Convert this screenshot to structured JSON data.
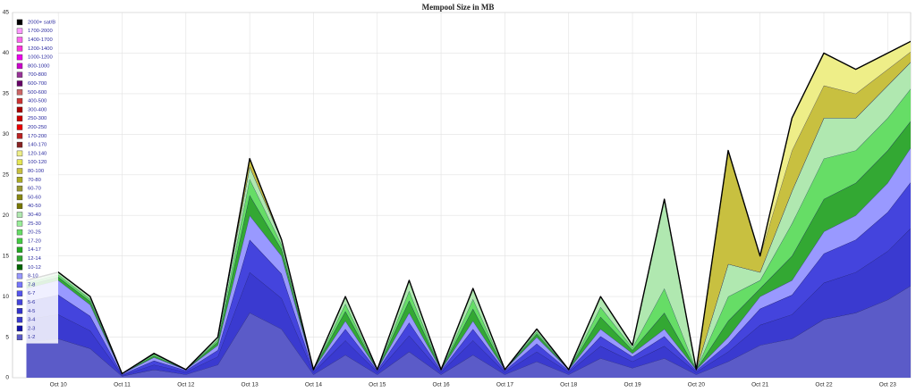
{
  "chart_data": {
    "type": "stacked-area",
    "title": "Mempool Size in MB",
    "categories": [
      null,
      "Oct 10",
      null,
      "Oct 11",
      null,
      "Oct 12",
      null,
      "Oct 13",
      null,
      "Oct 14",
      null,
      "Oct 15",
      null,
      "Oct 16",
      null,
      "Oct 17",
      null,
      "Oct 18",
      null,
      "Oct 19",
      null,
      "Oct 20",
      null,
      "Oct 21",
      null,
      "Oct 22",
      null,
      "Oct 23",
      null
    ],
    "ylim": [
      0,
      45
    ],
    "yticks": [
      0,
      5,
      10,
      15,
      20,
      25,
      30,
      35,
      40,
      45
    ],
    "grid": true,
    "legend": "top-left",
    "series": [
      {
        "name": "2000+ sat/B",
        "color": "#000000",
        "values": [
          0,
          0,
          0,
          0,
          0,
          0,
          0,
          0,
          0,
          0,
          0,
          0,
          0,
          0,
          0,
          0,
          0,
          0,
          0,
          0,
          0,
          0,
          0,
          0,
          0,
          0,
          0,
          0,
          0
        ]
      },
      {
        "name": "1700-2000",
        "color": "#ff99ff",
        "values": [
          0,
          0,
          0,
          0,
          0,
          0,
          0,
          0,
          0,
          0,
          0,
          0,
          0,
          0,
          0,
          0,
          0,
          0,
          0,
          0,
          0,
          0,
          0,
          0,
          0,
          0,
          0,
          0,
          0
        ]
      },
      {
        "name": "1400-1700",
        "color": "#ff66ee",
        "values": [
          0,
          0,
          0,
          0,
          0,
          0,
          0,
          0,
          0,
          0,
          0,
          0,
          0,
          0,
          0,
          0,
          0,
          0,
          0,
          0,
          0,
          0,
          0,
          0,
          0,
          0,
          0,
          0,
          0
        ]
      },
      {
        "name": "1200-1400",
        "color": "#ff33dd",
        "values": [
          0,
          0,
          0,
          0,
          0,
          0,
          0,
          0,
          0,
          0,
          0,
          0,
          0,
          0,
          0,
          0,
          0,
          0,
          0,
          0,
          0,
          0,
          0,
          0,
          0,
          0,
          0,
          0,
          0
        ]
      },
      {
        "name": "1000-1200",
        "color": "#ee00ee",
        "values": [
          0,
          0,
          0,
          0,
          0,
          0,
          0,
          0,
          0,
          0,
          0,
          0,
          0,
          0,
          0,
          0,
          0,
          0,
          0,
          0,
          0,
          0,
          0,
          0,
          0,
          0,
          0,
          0,
          0
        ]
      },
      {
        "name": "800-1000",
        "color": "#cc00cc",
        "values": [
          0,
          0,
          0,
          0,
          0,
          0,
          0,
          0,
          0,
          0,
          0,
          0,
          0,
          0,
          0,
          0,
          0,
          0,
          0,
          0,
          0,
          0,
          0,
          0,
          0,
          0,
          0,
          0,
          0
        ]
      },
      {
        "name": "700-800",
        "color": "#993399",
        "values": [
          0,
          0,
          0,
          0,
          0,
          0,
          0,
          0,
          0,
          0,
          0,
          0,
          0,
          0,
          0,
          0,
          0,
          0,
          0,
          0,
          0,
          0,
          0,
          0,
          0,
          0,
          0,
          0,
          0
        ]
      },
      {
        "name": "600-700",
        "color": "#660066",
        "values": [
          0,
          0,
          0,
          0,
          0,
          0,
          0,
          0,
          0,
          0,
          0,
          0,
          0,
          0,
          0,
          0,
          0,
          0,
          0,
          0,
          0,
          0,
          0,
          0,
          0,
          0,
          0,
          0,
          0
        ]
      },
      {
        "name": "500-600",
        "color": "#cc6666",
        "values": [
          0,
          0,
          0,
          0,
          0,
          0,
          0,
          0,
          0,
          0,
          0,
          0,
          0,
          0,
          0,
          0,
          0,
          0,
          0,
          0,
          0,
          0,
          0,
          0,
          0,
          0,
          0,
          0,
          0
        ]
      },
      {
        "name": "400-500",
        "color": "#cc3333",
        "values": [
          0,
          0,
          0,
          0,
          0,
          0,
          0,
          0,
          0,
          0,
          0,
          0,
          0,
          0,
          0,
          0,
          0,
          0,
          0,
          0,
          0,
          0,
          0,
          0,
          0,
          0,
          0,
          0,
          0
        ]
      },
      {
        "name": "300-400",
        "color": "#aa0000",
        "values": [
          0,
          0,
          0,
          0,
          0,
          0,
          0,
          0,
          0,
          0,
          0,
          0,
          0,
          0,
          0,
          0,
          0,
          0,
          0,
          0,
          0,
          0,
          0,
          0,
          0,
          0,
          0,
          0,
          0
        ]
      },
      {
        "name": "250-300",
        "color": "#cc0000",
        "values": [
          0,
          0,
          0,
          0,
          0,
          0,
          0,
          0,
          0,
          0,
          0,
          0,
          0,
          0,
          0,
          0,
          0,
          0,
          0,
          0,
          0,
          0,
          0,
          0,
          0,
          0,
          0,
          0,
          0
        ]
      },
      {
        "name": "200-250",
        "color": "#ee0000",
        "values": [
          0,
          0,
          0,
          0,
          0,
          0,
          0,
          0,
          0,
          0,
          0,
          0,
          0,
          0,
          0,
          0,
          0,
          0,
          0,
          0,
          0,
          0,
          0,
          0,
          0,
          0,
          0,
          0,
          0
        ]
      },
      {
        "name": "170-200",
        "color": "#bb2222",
        "values": [
          0,
          0,
          0,
          0,
          0,
          0,
          0,
          0,
          0,
          0,
          0,
          0,
          0,
          0,
          0,
          0,
          0,
          0,
          0,
          0,
          0,
          0,
          0,
          0,
          0,
          0,
          0,
          0,
          0
        ]
      },
      {
        "name": "140-170",
        "color": "#882222",
        "values": [
          0,
          0,
          0,
          0,
          0,
          0,
          0,
          0,
          0,
          0,
          0,
          0,
          0,
          0,
          0,
          0,
          0,
          0,
          0,
          0,
          0,
          0,
          0,
          0,
          0,
          0,
          0,
          0,
          0
        ]
      },
      {
        "name": "120-140",
        "color": "#eeee88",
        "values": [
          0,
          0,
          0,
          0,
          0,
          0,
          0,
          0,
          0,
          0,
          0,
          0,
          0,
          0,
          0,
          0,
          0,
          0,
          0,
          0,
          0,
          0,
          0,
          0,
          4,
          4,
          3,
          2,
          1
        ]
      },
      {
        "name": "100-120",
        "color": "#e6e655",
        "values": [
          0,
          0,
          0,
          0,
          0,
          0,
          0,
          0,
          0,
          0,
          0,
          0,
          0,
          0,
          0,
          0,
          0,
          0,
          0,
          0,
          0,
          0,
          0,
          0,
          0,
          0,
          0,
          0,
          0
        ]
      },
      {
        "name": "80-100",
        "color": "#c8c040",
        "values": [
          0,
          0,
          0,
          0,
          0,
          0,
          0,
          1,
          0,
          0,
          0,
          0,
          0,
          0,
          0,
          0,
          0,
          0,
          0,
          0,
          0,
          0,
          14,
          2,
          5,
          4,
          3,
          2,
          1
        ]
      },
      {
        "name": "70-80",
        "color": "#aaaa22",
        "values": [
          0,
          0,
          0,
          0,
          0,
          0,
          0,
          0,
          0,
          0,
          0,
          0,
          0,
          0,
          0,
          0,
          0,
          0,
          0,
          0,
          0,
          0,
          0,
          0,
          0,
          0,
          0,
          0,
          0
        ]
      },
      {
        "name": "60-70",
        "color": "#999933",
        "values": [
          0,
          0,
          0,
          0,
          0,
          0,
          0,
          0,
          0,
          0,
          0,
          0,
          0,
          0,
          0,
          0,
          0,
          0,
          0,
          0,
          0,
          0,
          0,
          0,
          0,
          0,
          0,
          0,
          0
        ]
      },
      {
        "name": "50-60",
        "color": "#888811",
        "values": [
          0,
          0,
          0,
          0,
          0,
          0,
          0,
          0,
          0,
          0,
          0,
          0,
          0,
          0,
          0,
          0,
          0,
          0,
          0,
          0,
          0,
          0,
          0,
          0,
          0,
          0,
          0,
          0,
          0
        ]
      },
      {
        "name": "40-50",
        "color": "#777700",
        "values": [
          0,
          0,
          0,
          0,
          0,
          0,
          0,
          0,
          0,
          0,
          0,
          0,
          0,
          0,
          0,
          0,
          0,
          0,
          0,
          0,
          0,
          0,
          0,
          0,
          0,
          0,
          0,
          0,
          0
        ]
      },
      {
        "name": "30-40",
        "color": "#b0e8b0",
        "values": [
          0.3,
          0.3,
          0.3,
          0,
          0.1,
          0,
          0.3,
          1.5,
          0.6,
          0,
          0.9,
          0,
          1.3,
          0,
          1.3,
          0,
          0.3,
          0,
          1.3,
          0.3,
          11,
          0,
          4,
          1,
          4,
          5,
          4,
          4,
          3
        ]
      },
      {
        "name": "25-30",
        "color": "#99ee99",
        "values": [
          0,
          0,
          0,
          0,
          0,
          0,
          0,
          0,
          0,
          0,
          0,
          0,
          0,
          0,
          0,
          0,
          0,
          0,
          0,
          0,
          0,
          0,
          0,
          0,
          0,
          0,
          0,
          0,
          0
        ]
      },
      {
        "name": "20-25",
        "color": "#66dd66",
        "values": [
          0.3,
          0.3,
          0.3,
          0,
          0.2,
          0,
          0.3,
          2,
          0.6,
          0,
          0.9,
          0,
          1.2,
          0,
          1.2,
          0,
          0.3,
          0,
          1.2,
          0.3,
          3,
          0,
          3,
          1,
          4,
          5,
          4,
          4,
          4
        ]
      },
      {
        "name": "17-20",
        "color": "#44cc44",
        "values": [
          0,
          0,
          0,
          0,
          0,
          0,
          0,
          0,
          0,
          0,
          0,
          0,
          0,
          0,
          0,
          0,
          0,
          0,
          0,
          0,
          0,
          0,
          0,
          0,
          0,
          0,
          0,
          0,
          0
        ]
      },
      {
        "name": "14-17",
        "color": "#22aa22",
        "values": [
          0,
          0,
          0,
          0,
          0,
          0,
          0,
          0,
          0,
          0,
          0,
          0,
          0,
          0,
          0,
          0,
          0,
          0,
          0,
          0,
          0,
          0,
          0,
          0,
          0,
          0,
          0,
          0,
          0
        ]
      },
      {
        "name": "12-14",
        "color": "#33a833",
        "values": [
          0.4,
          0.4,
          0.4,
          0,
          0.2,
          0,
          0.4,
          2.5,
          0.8,
          0,
          1.2,
          0,
          1.5,
          0,
          1.5,
          0,
          0.4,
          0,
          1.5,
          0.4,
          2,
          0,
          2,
          1,
          3,
          4,
          4,
          4,
          3
        ]
      },
      {
        "name": "10-12",
        "color": "#006600",
        "values": [
          0,
          0,
          0,
          0,
          0,
          0,
          0,
          0,
          0,
          0,
          0,
          0,
          0,
          0,
          0,
          0,
          0,
          0,
          0,
          0,
          0,
          0,
          0,
          0,
          0,
          0,
          0,
          0,
          0
        ]
      },
      {
        "name": "8-10",
        "color": "#9999ff",
        "values": [
          1.6,
          1.8,
          1.4,
          0.1,
          0.4,
          0.1,
          0.6,
          3,
          2.2,
          0.1,
          1,
          0.1,
          1.2,
          0.1,
          1,
          0.1,
          0.8,
          0.1,
          0.9,
          0.4,
          0.9,
          0.1,
          0.8,
          1.5,
          1.8,
          2.7,
          3,
          3.6,
          4.5
        ]
      },
      {
        "name": "7-8",
        "color": "#7777ff",
        "values": [
          0,
          0,
          0,
          0,
          0,
          0,
          0,
          0,
          0,
          0,
          0,
          0,
          0,
          0,
          0,
          0,
          0,
          0,
          0,
          0,
          0,
          0,
          0,
          0,
          0,
          0,
          0,
          0,
          0
        ]
      },
      {
        "name": "6-7",
        "color": "#5555ee",
        "values": [
          0,
          0,
          0,
          0,
          0,
          0,
          0,
          0,
          0,
          0,
          0,
          0,
          0,
          0,
          0,
          0,
          0,
          0,
          0,
          0,
          0,
          0,
          0,
          0,
          0,
          0,
          0,
          0,
          0
        ]
      },
      {
        "name": "5-6",
        "color": "#4444dd",
        "values": [
          2.2,
          2.4,
          1.8,
          0.1,
          0.5,
          0.2,
          0.8,
          4,
          3,
          0.2,
          1.4,
          0.2,
          1.6,
          0.2,
          1.4,
          0.2,
          1,
          0.2,
          1.2,
          0.6,
          1.2,
          0.2,
          1,
          2,
          2.4,
          3.6,
          4,
          4.8,
          6
        ]
      },
      {
        "name": "4-5",
        "color": "#3333cc",
        "values": [
          0,
          0,
          0,
          0,
          0,
          0,
          0,
          0,
          0,
          0,
          0,
          0,
          0,
          0,
          0,
          0,
          0,
          0,
          0,
          0,
          0,
          0,
          0,
          0,
          0,
          0,
          0,
          0,
          0
        ]
      },
      {
        "name": "3-4",
        "color": "#3a3ad0",
        "values": [
          2.8,
          3,
          2.2,
          0.1,
          0.6,
          0.3,
          1,
          5,
          3.8,
          0.3,
          1.8,
          0.3,
          2,
          0.3,
          1.8,
          0.3,
          1.2,
          0.3,
          1.5,
          0.8,
          1.5,
          0.3,
          1.2,
          2.5,
          3,
          4.5,
          5,
          6,
          7.5
        ]
      },
      {
        "name": "2-3",
        "color": "#1111aa",
        "values": [
          0,
          0,
          0,
          0,
          0,
          0,
          0,
          0,
          0,
          0,
          0,
          0,
          0,
          0,
          0,
          0,
          0,
          0,
          0,
          0,
          0,
          0,
          0,
          0,
          0,
          0,
          0,
          0,
          0
        ]
      },
      {
        "name": "1-2",
        "color": "#5b5bc8",
        "values": [
          4.4,
          4.8,
          3.6,
          0.2,
          1,
          0.4,
          1.6,
          8,
          6,
          0.4,
          2.8,
          0.4,
          3.2,
          0.4,
          2.8,
          0.4,
          2,
          0.4,
          2.4,
          1.2,
          2.4,
          0.4,
          2,
          4,
          4.8,
          7.2,
          8,
          9.6,
          12
        ]
      }
    ]
  }
}
